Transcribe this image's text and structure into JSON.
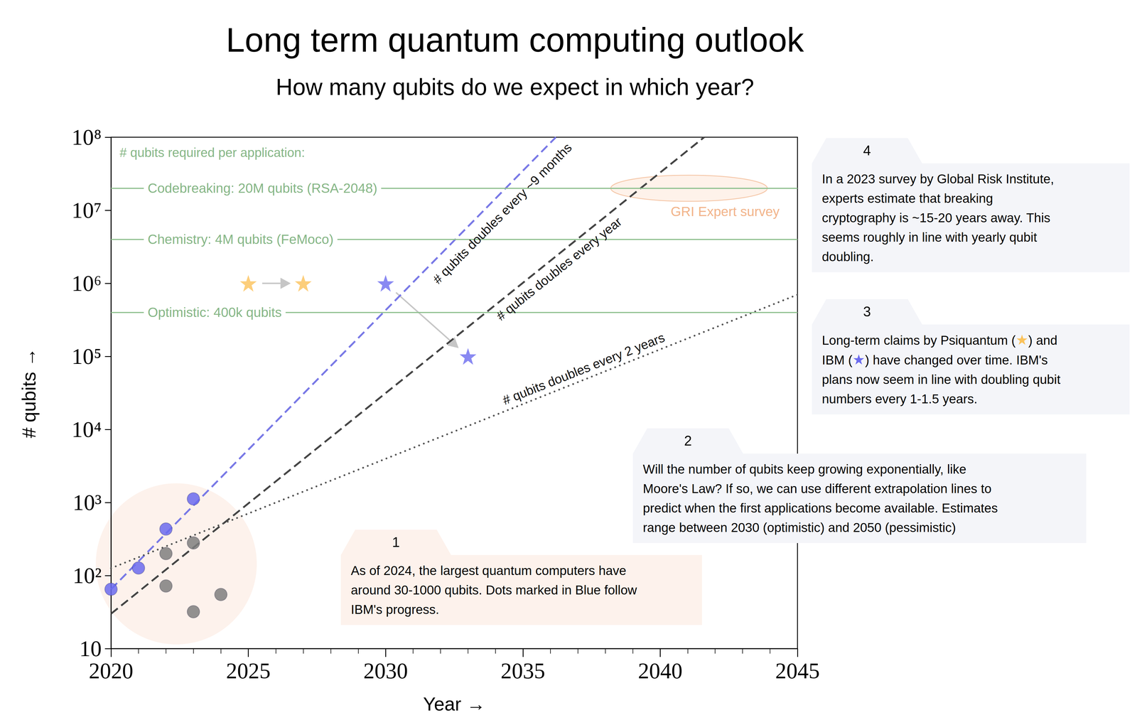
{
  "chart_data": {
    "type": "scatter",
    "title": "Long term quantum computing outlook",
    "subtitle": "How many qubits do we expect in which year?",
    "x_label": "Year →",
    "y_label": "# qubits →",
    "xlim": [
      2020,
      2045
    ],
    "xticks": [
      2020,
      2025,
      2030,
      2035,
      2040,
      2045
    ],
    "ylim": [
      10,
      100000000
    ],
    "yticks": [
      10,
      {
        "value": 100,
        "label": "10²"
      },
      {
        "value": 1000,
        "label": "10³"
      },
      {
        "value": 10000,
        "label": "10⁴"
      },
      {
        "value": 100000,
        "label": "10⁵"
      },
      {
        "value": 1000000,
        "label": "10⁶"
      },
      {
        "value": 10000000,
        "label": "10⁷"
      },
      {
        "value": 100000000,
        "label": "10⁸"
      }
    ],
    "log": "y",
    "grid": false,
    "series": [
      {
        "type": "scatter",
        "marker": "circle",
        "color": "#6b6bef",
        "x": [
          2020,
          2021,
          2022,
          2023
        ],
        "values": [
          65,
          127,
          433,
          1121
        ]
      },
      {
        "type": "scatter",
        "marker": "circle",
        "color": "#7f7f7f",
        "x": [
          2022,
          2022,
          2023,
          2023,
          2024
        ],
        "values": [
          200,
          72,
          280,
          32,
          55
        ]
      },
      {
        "name": "# qubits doubles every ~9 months",
        "type": "line",
        "line_style": "dashed",
        "color": "#7878e6",
        "x": [
          2020,
          2036.2
        ],
        "values": [
          65,
          100000000
        ]
      },
      {
        "name": "# qubits doubles every year",
        "type": "line",
        "line_style": "dashed",
        "color": "#444444",
        "x": [
          2020,
          2041.6
        ],
        "values": [
          30,
          100000000
        ]
      },
      {
        "name": "# qubits doubles every 2 years",
        "type": "line",
        "line_style": "dotted",
        "color": "#555555",
        "x": [
          2020,
          2045
        ],
        "values": [
          126,
          700000
        ]
      },
      {
        "name": "Psiquantum",
        "type": "scatter",
        "marker": "star",
        "color": "#fbc25a",
        "x": [
          2025,
          2027
        ],
        "values": [
          1000000,
          1000000
        ]
      },
      {
        "name": "IBM",
        "type": "scatter",
        "marker": "star",
        "color": "#6b6bef",
        "x": [
          2030,
          2033
        ],
        "values": [
          1000000,
          100000
        ]
      }
    ],
    "thresholds_title": "# qubits required per application:",
    "thresholds": [
      {
        "label": "Codebreaking: 20M qubits (RSA-2048)",
        "value": 20000000
      },
      {
        "label": "Chemistry: 4M qubits (FeMoco)",
        "value": 4000000
      },
      {
        "label": "Optimistic: 400k qubits",
        "value": 400000
      }
    ],
    "gri_survey": {
      "label": "GRI Expert survey",
      "x_range": [
        2038.2,
        2043.9
      ],
      "value": 20000000
    },
    "notes": [
      {
        "label": "1",
        "lines": [
          "As of 2024, the largest quantum computers have",
          "around 30-1000 qubits. Dots marked in Blue follow",
          "IBM's progress."
        ]
      },
      {
        "label": "2",
        "lines": [
          "Will the number of qubits keep growing exponentially, like",
          "Moore's Law? If so, we can use different extrapolation lines to",
          "predict when the first applications become available. Estimates",
          "range between 2030 (optimistic) and 2050 (pessimistic)"
        ]
      },
      {
        "label": "3",
        "lines": [
          "Long-term claims by Psiquantum (★)  and",
          "IBM (★) have changed over time. IBM's",
          "plans now seem in line with doubling qubit",
          "numbers every 1-1.5 years."
        ]
      },
      {
        "label": "4",
        "lines": [
          "In a 2023 survey by Global Risk Institute,",
          "experts estimate that breaking",
          "cryptography is ~15-20 years away. This",
          "seems roughly in line with yearly qubit",
          "doubling."
        ]
      }
    ]
  }
}
